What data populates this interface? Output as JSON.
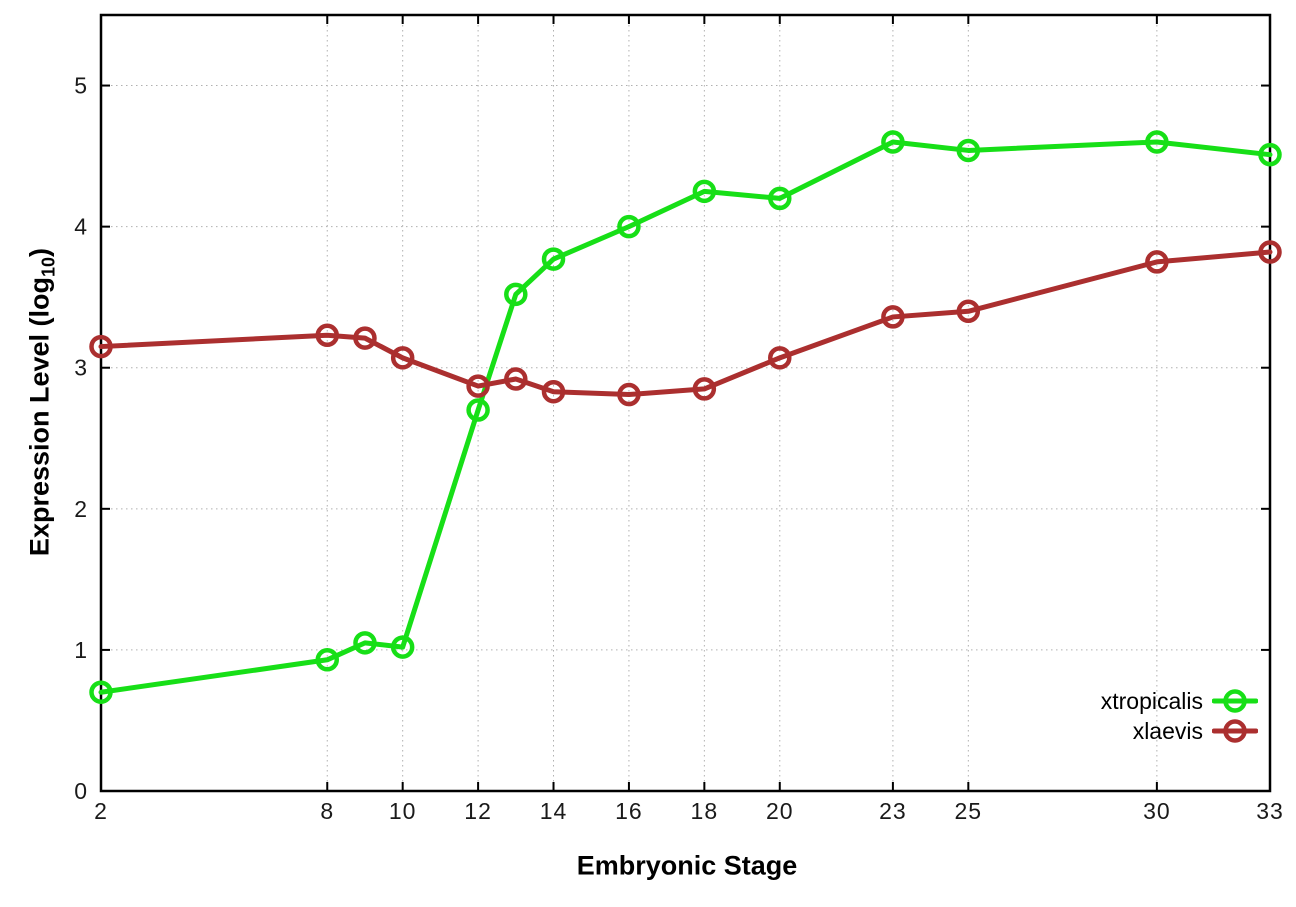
{
  "chart_data": {
    "type": "line",
    "title": "",
    "xlabel": "Embryonic Stage",
    "ylabel": "Expression Level (log10)",
    "ylabel_parts": {
      "main": "Expression Level (log",
      "sub": "10",
      "close": ")"
    },
    "x": [
      2,
      8,
      9,
      10,
      12,
      13,
      14,
      16,
      18,
      20,
      23,
      25,
      30,
      33
    ],
    "series": [
      {
        "name": "xtropicalis",
        "color": "#17df17",
        "values": [
          0.7,
          0.93,
          1.05,
          1.02,
          2.7,
          3.52,
          3.77,
          4.0,
          4.25,
          4.2,
          4.6,
          4.54,
          4.6,
          4.51
        ]
      },
      {
        "name": "xlaevis",
        "color": "#ab2f2f",
        "values": [
          3.15,
          3.23,
          3.21,
          3.07,
          2.87,
          2.92,
          2.83,
          2.81,
          2.85,
          3.07,
          3.36,
          3.4,
          3.75,
          3.82
        ]
      }
    ],
    "xticks": [
      2,
      8,
      10,
      12,
      14,
      16,
      18,
      20,
      23,
      25,
      30,
      33
    ],
    "yticks": [
      0,
      1,
      2,
      3,
      4,
      5
    ],
    "xlim": [
      2,
      33
    ],
    "ylim": [
      0,
      5.5
    ],
    "grid": true,
    "legend_position": "bottom-right",
    "marker": "open-circle",
    "grid_color": "#b0b0b0",
    "border_color": "#000000"
  }
}
